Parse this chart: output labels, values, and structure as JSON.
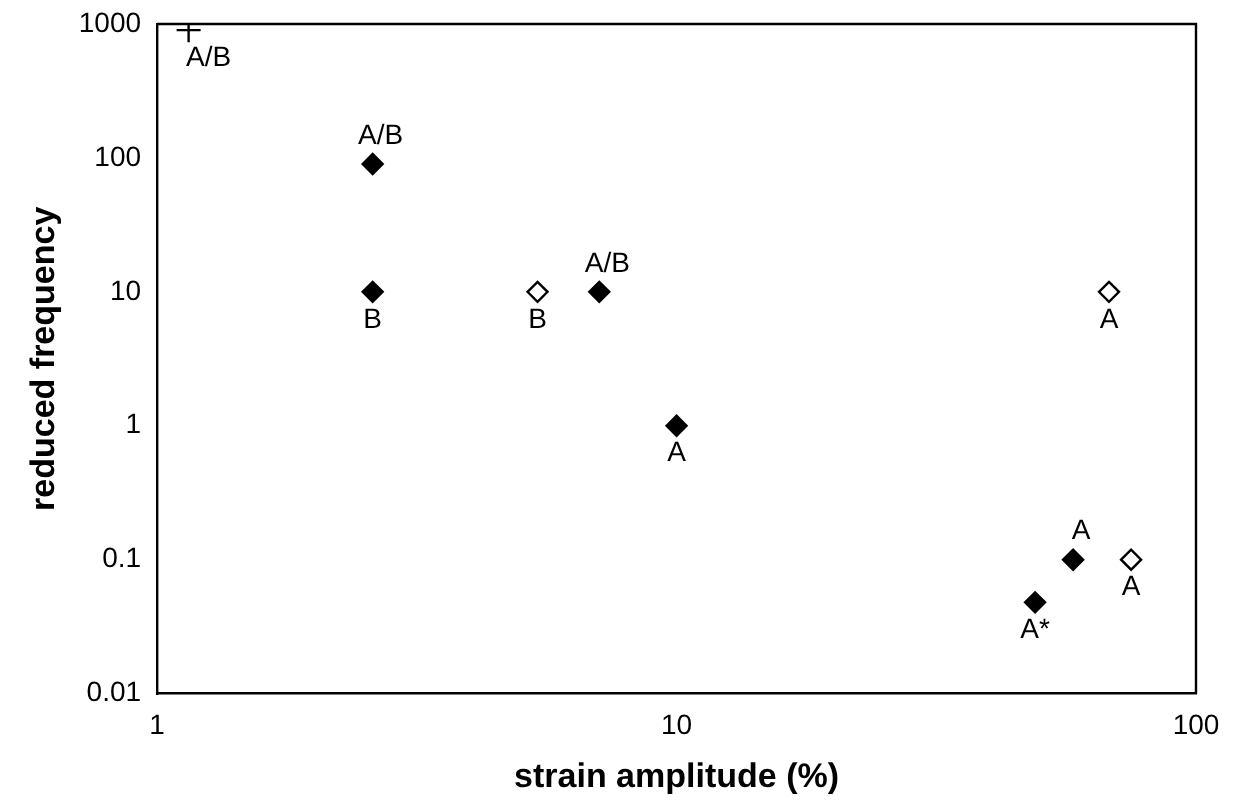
{
  "chart_data": {
    "type": "scatter",
    "xlabel": "strain amplitude (%)",
    "ylabel": "reduced frequency",
    "log": "xy",
    "grid": false,
    "legend": false,
    "xlim": [
      1,
      100
    ],
    "xticks": [
      1,
      10,
      100
    ],
    "ylim": [
      0.01,
      1000
    ],
    "yticks": [
      0.01,
      0.1,
      1,
      10,
      100,
      1000
    ],
    "series": [
      {
        "marker": "cross",
        "color": "#000000",
        "x": [
          1.15
        ],
        "values": [
          900
        ]
      },
      {
        "marker": "diamond",
        "color": "#000000",
        "x": [
          2.6,
          2.6,
          7.1,
          10,
          58,
          49
        ],
        "values": [
          90,
          10,
          10,
          1,
          0.1,
          0.048
        ]
      },
      {
        "marker": "diamond",
        "color": "#ffffff",
        "x": [
          5.4,
          68,
          75
        ],
        "values": [
          10,
          10,
          0.1
        ]
      }
    ],
    "annotations": [
      {
        "text": "A/B",
        "x": 1.15,
        "y": 900
      },
      {
        "text": "A/B",
        "x": 2.6,
        "y": 90
      },
      {
        "text": "B",
        "x": 2.6,
        "y": 10
      },
      {
        "text": "B",
        "x": 5.4,
        "y": 10
      },
      {
        "text": "A/B",
        "x": 7.1,
        "y": 10
      },
      {
        "text": "A",
        "x": 10,
        "y": 1
      },
      {
        "text": "A",
        "x": 68,
        "y": 10
      },
      {
        "text": "A",
        "x": 58,
        "y": 0.1
      },
      {
        "text": "A",
        "x": 75,
        "y": 0.1
      },
      {
        "text": "A*",
        "x": 49,
        "y": 0.048
      }
    ]
  }
}
